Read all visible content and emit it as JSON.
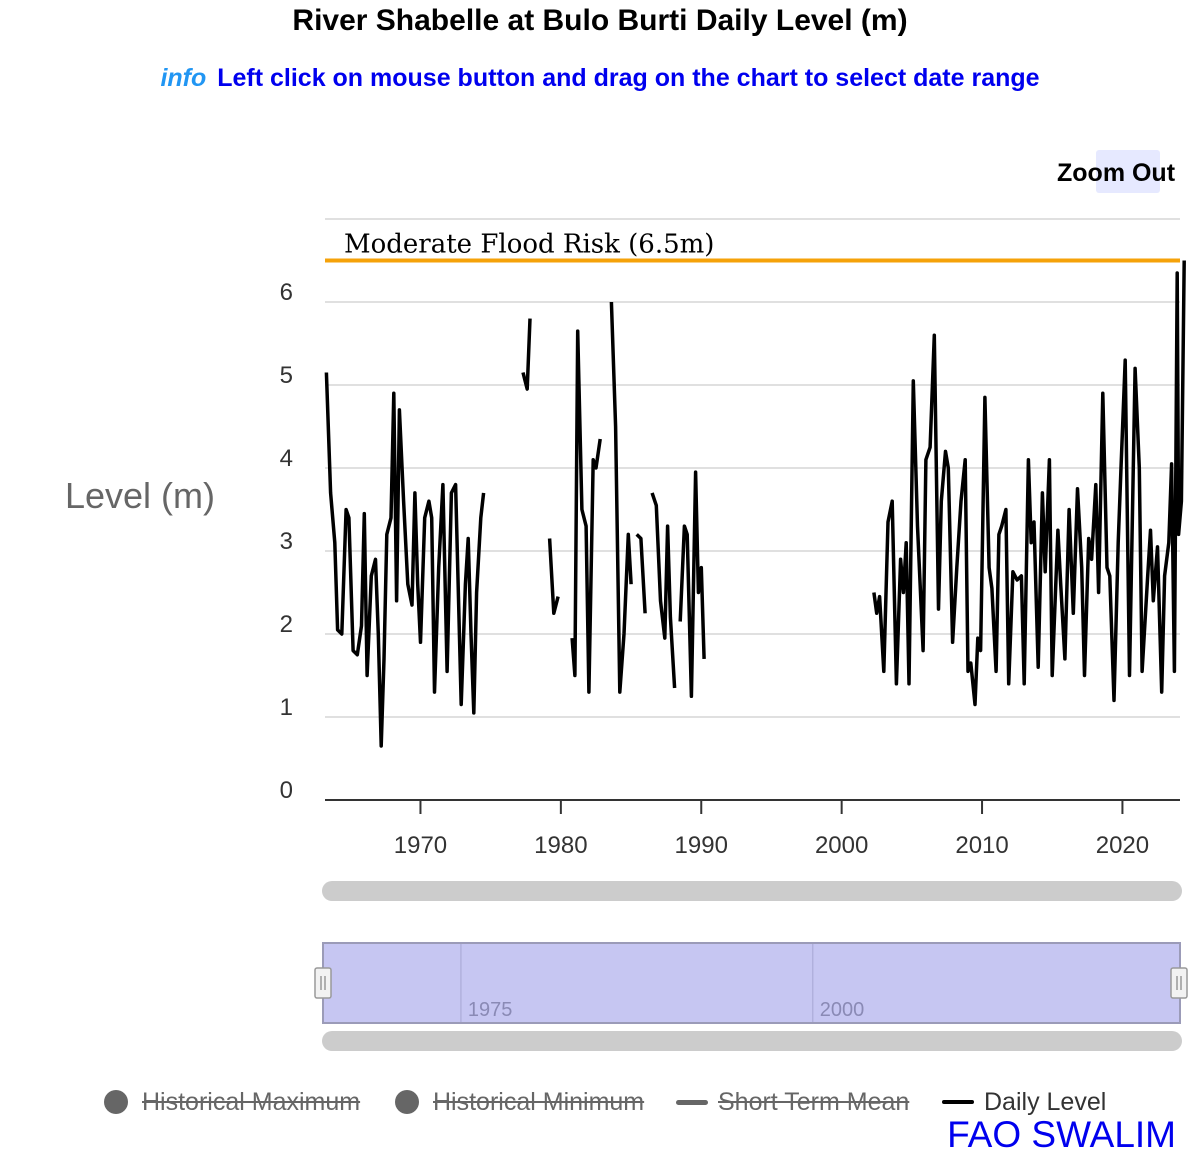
{
  "title": "River Shabelle at Bulo Burti Daily Level (m)",
  "info": {
    "tag": "info",
    "text": "Left click on mouse button and drag on the chart to select date range"
  },
  "zoom_out_label": "Zoom Out",
  "credit": "FAO SWALIM",
  "legend": [
    {
      "label": "Historical Maximum",
      "symbol": "dot",
      "color": "#666666",
      "hidden": true
    },
    {
      "label": "Historical Minimum",
      "symbol": "dot",
      "color": "#666666",
      "hidden": true
    },
    {
      "label": "Short Term Mean",
      "symbol": "line",
      "color": "#666666",
      "hidden": true
    },
    {
      "label": "Daily Level",
      "symbol": "line",
      "color": "#000000",
      "hidden": false
    }
  ],
  "chart_data": {
    "type": "line",
    "title": "River Shabelle at Bulo Burti Daily Level (m)",
    "ylabel": "Level (m)",
    "xlabel": "",
    "xlim": [
      1963.2,
      2024.1
    ],
    "ylim": [
      0,
      7
    ],
    "yticks": [
      0,
      1,
      2,
      3,
      4,
      5,
      6
    ],
    "xticks": [
      1970,
      1980,
      1990,
      2000,
      2010,
      2020
    ],
    "grid": true,
    "threshold": {
      "label": "Moderate Flood Risk (6.5m)",
      "value": 6.5,
      "color": "#f5a20a"
    },
    "navigator_ticks": [
      1975,
      2000
    ],
    "series": [
      {
        "name": "Daily Level",
        "color": "#000000",
        "segments": [
          [
            [
              1963.3,
              5.15
            ],
            [
              1963.6,
              3.7
            ],
            [
              1963.9,
              3.1
            ],
            [
              1964.1,
              2.05
            ],
            [
              1964.4,
              2.0
            ],
            [
              1964.7,
              3.5
            ],
            [
              1964.9,
              3.4
            ],
            [
              1965.2,
              1.8
            ],
            [
              1965.5,
              1.75
            ],
            [
              1965.8,
              2.1
            ],
            [
              1966.0,
              3.45
            ],
            [
              1966.2,
              1.5
            ],
            [
              1966.5,
              2.7
            ],
            [
              1966.8,
              2.9
            ],
            [
              1967.0,
              2.0
            ],
            [
              1967.2,
              0.65
            ],
            [
              1967.4,
              1.7
            ],
            [
              1967.6,
              3.2
            ],
            [
              1967.9,
              3.4
            ],
            [
              1968.1,
              4.9
            ],
            [
              1968.3,
              2.4
            ],
            [
              1968.5,
              4.7
            ],
            [
              1968.8,
              3.6
            ],
            [
              1969.1,
              2.6
            ],
            [
              1969.4,
              2.35
            ],
            [
              1969.6,
              3.7
            ],
            [
              1969.8,
              2.6
            ],
            [
              1970.0,
              1.9
            ],
            [
              1970.3,
              3.4
            ],
            [
              1970.6,
              3.6
            ],
            [
              1970.8,
              3.4
            ],
            [
              1971.0,
              1.3
            ],
            [
              1971.3,
              2.8
            ],
            [
              1971.6,
              3.8
            ],
            [
              1971.9,
              1.55
            ],
            [
              1972.2,
              3.7
            ],
            [
              1972.5,
              3.8
            ],
            [
              1972.9,
              1.15
            ],
            [
              1973.2,
              2.6
            ],
            [
              1973.4,
              3.15
            ],
            [
              1973.6,
              2.0
            ],
            [
              1973.8,
              1.05
            ],
            [
              1974.0,
              2.5
            ],
            [
              1974.3,
              3.4
            ],
            [
              1974.5,
              3.7
            ]
          ],
          [
            [
              1977.3,
              5.15
            ],
            [
              1977.6,
              4.95
            ],
            [
              1977.8,
              5.8
            ]
          ],
          [
            [
              1979.2,
              3.15
            ],
            [
              1979.5,
              2.25
            ],
            [
              1979.8,
              2.45
            ]
          ],
          [
            [
              1980.8,
              1.95
            ],
            [
              1981.0,
              1.5
            ],
            [
              1981.2,
              5.65
            ],
            [
              1981.5,
              3.5
            ],
            [
              1981.8,
              3.3
            ],
            [
              1982.0,
              1.3
            ],
            [
              1982.3,
              4.1
            ],
            [
              1982.5,
              4.0
            ],
            [
              1982.8,
              4.35
            ]
          ],
          [
            [
              1983.6,
              6.0
            ],
            [
              1983.9,
              4.5
            ],
            [
              1984.2,
              1.3
            ],
            [
              1984.5,
              2.0
            ],
            [
              1984.8,
              3.2
            ],
            [
              1985.0,
              2.6
            ]
          ],
          [
            [
              1985.4,
              3.2
            ],
            [
              1985.7,
              3.15
            ],
            [
              1986.0,
              2.25
            ]
          ],
          [
            [
              1986.5,
              3.7
            ],
            [
              1986.8,
              3.55
            ],
            [
              1987.1,
              2.4
            ],
            [
              1987.4,
              1.95
            ],
            [
              1987.6,
              3.3
            ],
            [
              1987.8,
              2.2
            ],
            [
              1988.1,
              1.35
            ]
          ],
          [
            [
              1988.5,
              2.15
            ],
            [
              1988.8,
              3.3
            ],
            [
              1989.0,
              3.2
            ],
            [
              1989.3,
              1.25
            ],
            [
              1989.6,
              3.95
            ],
            [
              1989.8,
              2.5
            ],
            [
              1990.0,
              2.8
            ],
            [
              1990.2,
              1.7
            ]
          ],
          [
            [
              2002.3,
              2.5
            ],
            [
              2002.5,
              2.25
            ],
            [
              2002.7,
              2.45
            ],
            [
              2003.0,
              1.55
            ],
            [
              2003.3,
              3.35
            ],
            [
              2003.6,
              3.6
            ],
            [
              2003.9,
              1.4
            ],
            [
              2004.2,
              2.9
            ],
            [
              2004.4,
              2.5
            ],
            [
              2004.6,
              3.1
            ],
            [
              2004.8,
              1.4
            ],
            [
              2005.1,
              5.05
            ],
            [
              2005.4,
              3.3
            ],
            [
              2005.8,
              1.8
            ],
            [
              2006.0,
              4.1
            ],
            [
              2006.3,
              4.25
            ],
            [
              2006.6,
              5.6
            ],
            [
              2006.9,
              2.3
            ],
            [
              2007.1,
              3.6
            ],
            [
              2007.4,
              4.2
            ],
            [
              2007.6,
              4.0
            ],
            [
              2007.9,
              1.9
            ],
            [
              2008.2,
              2.8
            ],
            [
              2008.5,
              3.6
            ],
            [
              2008.8,
              4.1
            ],
            [
              2009.0,
              1.55
            ],
            [
              2009.2,
              1.65
            ],
            [
              2009.5,
              1.15
            ],
            [
              2009.7,
              1.95
            ],
            [
              2009.9,
              1.8
            ],
            [
              2010.2,
              4.85
            ],
            [
              2010.5,
              2.8
            ],
            [
              2010.7,
              2.55
            ],
            [
              2011.0,
              1.55
            ],
            [
              2011.2,
              3.2
            ],
            [
              2011.4,
              3.3
            ],
            [
              2011.7,
              3.5
            ],
            [
              2011.9,
              1.4
            ],
            [
              2012.2,
              2.75
            ],
            [
              2012.5,
              2.65
            ],
            [
              2012.8,
              2.7
            ],
            [
              2013.0,
              1.4
            ],
            [
              2013.3,
              4.1
            ],
            [
              2013.5,
              3.1
            ],
            [
              2013.7,
              3.35
            ],
            [
              2014.0,
              1.6
            ],
            [
              2014.3,
              3.7
            ],
            [
              2014.5,
              2.75
            ],
            [
              2014.8,
              4.1
            ],
            [
              2015.0,
              1.5
            ],
            [
              2015.4,
              3.25
            ],
            [
              2015.6,
              2.6
            ],
            [
              2015.9,
              1.7
            ],
            [
              2016.2,
              3.5
            ],
            [
              2016.5,
              2.25
            ],
            [
              2016.8,
              3.75
            ],
            [
              2017.1,
              2.8
            ],
            [
              2017.3,
              1.5
            ],
            [
              2017.6,
              3.15
            ],
            [
              2017.8,
              2.9
            ],
            [
              2018.1,
              3.8
            ],
            [
              2018.3,
              2.5
            ],
            [
              2018.6,
              4.9
            ],
            [
              2018.9,
              2.8
            ],
            [
              2019.1,
              2.7
            ],
            [
              2019.4,
              1.2
            ],
            [
              2019.7,
              3.1
            ],
            [
              2019.9,
              4.0
            ],
            [
              2020.2,
              5.3
            ],
            [
              2020.5,
              1.5
            ],
            [
              2020.9,
              5.2
            ],
            [
              2021.2,
              4.0
            ],
            [
              2021.4,
              1.55
            ],
            [
              2021.8,
              2.7
            ],
            [
              2022.0,
              3.25
            ],
            [
              2022.2,
              2.4
            ],
            [
              2022.5,
              3.05
            ],
            [
              2022.8,
              1.3
            ],
            [
              2023.0,
              2.7
            ],
            [
              2023.3,
              3.1
            ],
            [
              2023.5,
              4.05
            ],
            [
              2023.7,
              1.55
            ],
            [
              2023.9,
              6.35
            ],
            [
              2024.0,
              3.2
            ],
            [
              2024.2,
              3.6
            ],
            [
              2024.4,
              6.5
            ]
          ]
        ]
      }
    ]
  }
}
